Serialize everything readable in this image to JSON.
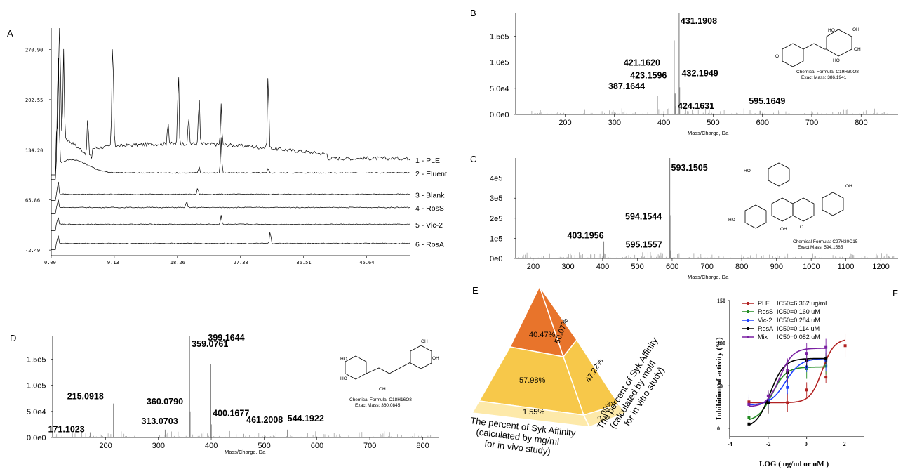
{
  "chart_data": [
    {
      "panel": "A",
      "type": "line",
      "x_ticks": [
        "0.00",
        "9.13",
        "18.26",
        "27.38",
        "36.51",
        "45.64"
      ],
      "y_ticks": [
        "-2.49",
        "65.86",
        "134.20",
        "202.55",
        "270.90"
      ],
      "xlim": [
        0,
        52
      ],
      "ylim": [
        -10,
        300
      ],
      "series": [
        {
          "name": "1 - PLE",
          "baseline": 120,
          "peaks": [
            [
              1.2,
              300
            ],
            [
              1.8,
              240
            ],
            [
              5.3,
              175
            ],
            [
              8.9,
              262
            ],
            [
              18.4,
              225
            ],
            [
              21.4,
              190
            ],
            [
              24.6,
              175
            ],
            [
              31.4,
              230
            ],
            [
              16.9,
              154
            ],
            [
              19.9,
              160
            ]
          ]
        },
        {
          "name": "2 - Eluent",
          "baseline": 102,
          "peaks": [
            [
              1.0,
              260
            ],
            [
              24.6,
              150
            ],
            [
              21.4,
              110
            ],
            [
              31.4,
              108
            ]
          ]
        },
        {
          "name": "3 - Blank",
          "baseline": 73,
          "peaks": [
            [
              1.0,
              92
            ],
            [
              21.2,
              82
            ]
          ]
        },
        {
          "name": "4 - RosS",
          "baseline": 55,
          "peaks": [
            [
              1.0,
              66
            ],
            [
              19.6,
              64
            ]
          ]
        },
        {
          "name": "5 - Vic-2",
          "baseline": 32,
          "peaks": [
            [
              1.0,
              42
            ],
            [
              24.6,
              45
            ]
          ]
        },
        {
          "name": "6 - RosA",
          "baseline": 6,
          "peaks": [
            [
              1.0,
              18
            ],
            [
              31.7,
              23
            ]
          ]
        }
      ]
    },
    {
      "panel": "B",
      "type": "bar",
      "xlabel": "Mass/Charge, Da",
      "x_ticks": [
        200,
        300,
        400,
        500,
        600,
        700,
        800
      ],
      "y_ticks": [
        "0.0e0",
        "5.0e4",
        "1.0e5",
        "1.5e5"
      ],
      "xlim": [
        100,
        875
      ],
      "ylim": [
        0,
        195000
      ],
      "peaks": [
        {
          "mz": 431.1908,
          "value": 195000,
          "label": "431.1908"
        },
        {
          "mz": 421.162,
          "value": 142000,
          "label": "421.1620"
        },
        {
          "mz": 423.1596,
          "value": 40000,
          "label": "423.1596"
        },
        {
          "mz": 432.1949,
          "value": 52000,
          "label": "432.1949"
        },
        {
          "mz": 387.1644,
          "value": 35000,
          "label": "387.1644"
        },
        {
          "mz": 424.1631,
          "value": 16000,
          "label": "424.1631"
        },
        {
          "mz": 595.1649,
          "value": 7000,
          "label": "595.1649"
        }
      ],
      "compound": {
        "formula": "Chemical Formula: C19H30O8",
        "mass": "Exact Mass: 386.1941"
      }
    },
    {
      "panel": "C",
      "type": "bar",
      "xlabel": "Mass/Charge, Da",
      "x_ticks": [
        200,
        300,
        400,
        500,
        600,
        700,
        800,
        900,
        1000,
        1100,
        1200
      ],
      "y_ticks": [
        "0e0",
        "1e5",
        "2e5",
        "3e5",
        "4e5"
      ],
      "xlim": [
        150,
        1250
      ],
      "ylim": [
        0,
        500000
      ],
      "peaks": [
        {
          "mz": 593.1505,
          "value": 500000,
          "label": "593.1505"
        },
        {
          "mz": 594.1544,
          "value": 215000,
          "label": "594.1544"
        },
        {
          "mz": 403.1956,
          "value": 85000,
          "label": "403.1956"
        },
        {
          "mz": 595.1557,
          "value": 40000,
          "label": "595.1557"
        }
      ],
      "compound": {
        "formula": "Chemical Formula: C27H30O15",
        "mass": "Exact Mass: 594.1585"
      }
    },
    {
      "panel": "D",
      "type": "bar",
      "xlabel": "Mass/Charge, Da",
      "x_ticks": [
        200,
        300,
        400,
        500,
        600,
        700,
        800
      ],
      "y_ticks": [
        "0.0e0",
        "5.0e4",
        "1.0e5",
        "1.5e5"
      ],
      "xlim": [
        100,
        830
      ],
      "ylim": [
        0,
        195000
      ],
      "peaks": [
        {
          "mz": 359.0761,
          "value": 195000,
          "label": "359.0761"
        },
        {
          "mz": 399.1644,
          "value": 140000,
          "label": "399.1644"
        },
        {
          "mz": 360.079,
          "value": 50000,
          "label": "360.0790"
        },
        {
          "mz": 215.0918,
          "value": 65000,
          "label": "215.0918"
        },
        {
          "mz": 400.1677,
          "value": 25000,
          "label": "400.1677"
        },
        {
          "mz": 313.0703,
          "value": 15000,
          "label": "313.0703"
        },
        {
          "mz": 171.1023,
          "value": 10000,
          "label": "171.1023"
        },
        {
          "mz": 461.2008,
          "value": 7000,
          "label": "461.2008"
        },
        {
          "mz": 544.1922,
          "value": 15000,
          "label": "544.1922"
        }
      ],
      "compound": {
        "formula": "Chemical Formula: C18H16O8",
        "mass": "Exact Mass: 360.0845"
      }
    },
    {
      "panel": "E",
      "type": "pie",
      "faces": [
        {
          "caption": "The percent of Syk Affinity\n(calculated by mg/ml\nfor in vivo study)",
          "values": [
            "40.47%",
            "57.98%",
            "1.55%"
          ]
        },
        {
          "caption": "The percent of Syk Affinity\n(calculated by mol/l\nfor in vitro study)",
          "values": [
            "50.07%",
            "47.22%",
            "2.08%"
          ]
        }
      ]
    },
    {
      "panel": "F",
      "type": "line",
      "xlabel": "LOG ( ug/ml or  uM )",
      "ylabel": "Inhibition of activity (%)",
      "x_ticks": [
        -4,
        -2,
        0,
        2
      ],
      "y_ticks": [
        0,
        50,
        100,
        150
      ],
      "xlim": [
        -4,
        3
      ],
      "ylim": [
        -10,
        150
      ],
      "series": [
        {
          "name": "PLE",
          "ic50": "IC50=6.362 ug/ml",
          "color": "#b22222",
          "x": [
            -3,
            -2,
            -1,
            0,
            1,
            2
          ],
          "y": [
            31,
            31,
            30,
            45,
            60,
            97
          ],
          "fit": {
            "bottom": 30,
            "top": 105,
            "logec50": 0.8,
            "hill": 1.4
          }
        },
        {
          "name": "RosS",
          "ic50": "IC50=0.160 uM",
          "color": "#228b22",
          "x": [
            -3,
            -2,
            -1,
            0,
            1
          ],
          "y": [
            13,
            30,
            60,
            70,
            73
          ],
          "fit": {
            "bottom": 8,
            "top": 72,
            "logec50": -1.8,
            "hill": 1.2
          }
        },
        {
          "name": "Vic-2",
          "ic50": "IC50=0.284 uM",
          "color": "#1e40ff",
          "x": [
            -3,
            -2,
            -1,
            0,
            1
          ],
          "y": [
            28,
            33,
            48,
            72,
            80
          ],
          "fit": {
            "bottom": 27,
            "top": 82,
            "logec50": -1.1,
            "hill": 1.1
          }
        },
        {
          "name": "RosA",
          "ic50": "IC50=0.114 uM",
          "color": "#000000",
          "x": [
            -3,
            -2,
            -1,
            0,
            1
          ],
          "y": [
            5,
            30,
            65,
            80,
            82
          ],
          "fit": {
            "bottom": 0,
            "top": 82,
            "logec50": -1.9,
            "hill": 1.2
          }
        },
        {
          "name": "Mix",
          "ic50": "IC50=0.082 uM",
          "color": "#7a1fa2",
          "x": [
            -3,
            -2,
            -1,
            0,
            1
          ],
          "y": [
            28,
            38,
            68,
            88,
            95
          ],
          "fit": {
            "bottom": 25,
            "top": 94,
            "logec50": -1.4,
            "hill": 1.3
          }
        }
      ]
    }
  ],
  "panel_labels": {
    "A": "A",
    "B": "B",
    "C": "C",
    "D": "D",
    "E": "E",
    "F": "F"
  },
  "pyramid_colors": {
    "top": "#e8742b",
    "middle": "#f7c84a",
    "base": "#fde9a9"
  }
}
